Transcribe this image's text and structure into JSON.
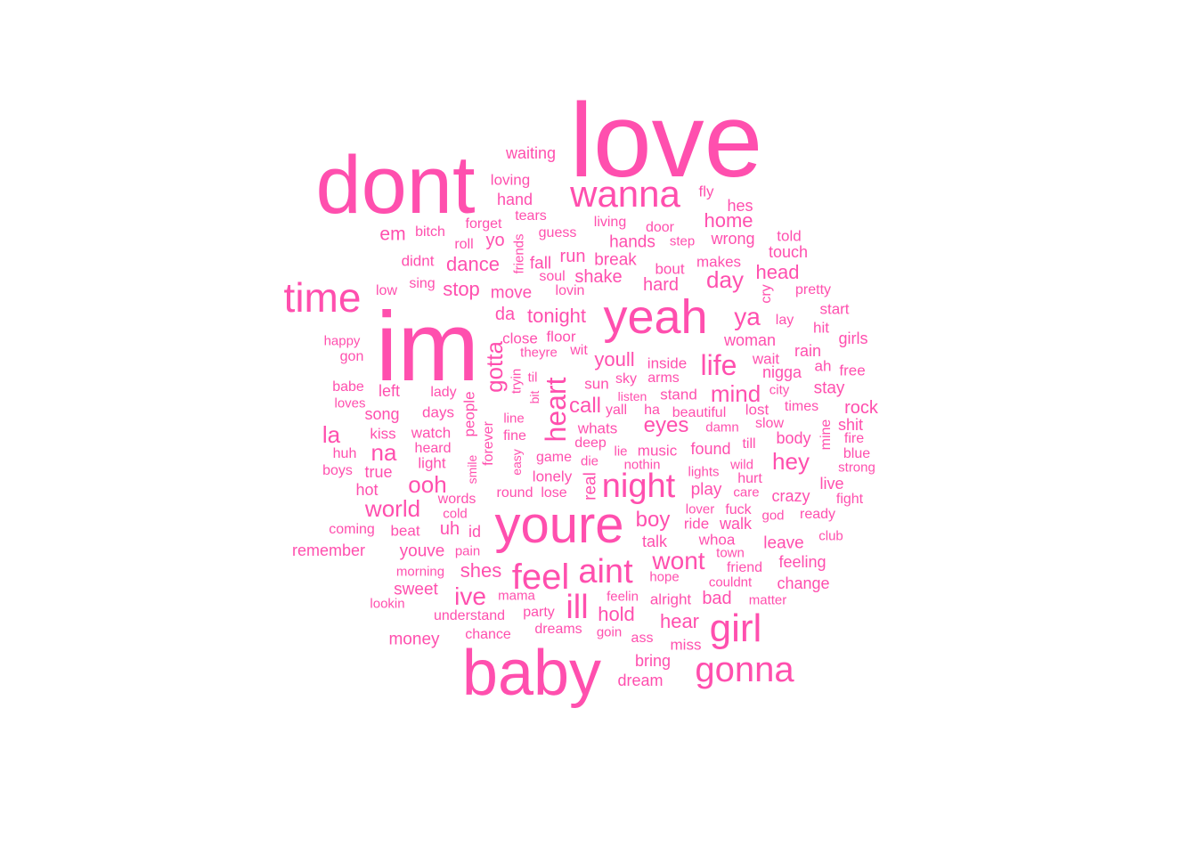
{
  "cloud": {
    "color": "#ff4fae",
    "words": [
      {
        "text": "love",
        "size": "huge",
        "prominence": 1.0
      },
      {
        "text": "dont",
        "size": "huge",
        "prominence": 0.85
      },
      {
        "text": "im",
        "size": "huge",
        "prominence": 0.95
      },
      {
        "text": "baby",
        "size": "huge",
        "prominence": 0.8
      },
      {
        "text": "youre",
        "size": "large",
        "prominence": 0.6
      },
      {
        "text": "yeah",
        "size": "large",
        "prominence": 0.6
      },
      {
        "text": "wanna",
        "size": "large",
        "prominence": 0.45
      },
      {
        "text": "time",
        "size": "large",
        "prominence": 0.45
      },
      {
        "text": "night",
        "size": "large",
        "prominence": 0.4
      },
      {
        "text": "girl",
        "size": "large",
        "prominence": 0.4
      },
      {
        "text": "gonna",
        "size": "large",
        "prominence": 0.4
      },
      {
        "text": "feel",
        "size": "large",
        "prominence": 0.38
      },
      {
        "text": "aint",
        "size": "large",
        "prominence": 0.38
      },
      {
        "text": "ill",
        "size": "large",
        "prominence": 0.35
      },
      {
        "text": "heart",
        "size": "medium",
        "prominence": 0.3
      },
      {
        "text": "life",
        "size": "medium",
        "prominence": 0.3
      },
      {
        "text": "wont",
        "size": "medium",
        "prominence": 0.27
      },
      {
        "text": "gotta",
        "size": "medium",
        "prominence": 0.27
      },
      {
        "text": "ooh",
        "size": "medium",
        "prominence": 0.26
      },
      {
        "text": "world",
        "size": "medium",
        "prominence": 0.24
      },
      {
        "text": "ive",
        "size": "medium",
        "prominence": 0.26
      },
      {
        "text": "day",
        "size": "medium",
        "prominence": 0.25
      },
      {
        "text": "ya",
        "size": "medium",
        "prominence": 0.24
      },
      {
        "text": "hey",
        "size": "medium",
        "prominence": 0.24
      },
      {
        "text": "mind",
        "size": "medium",
        "prominence": 0.22
      },
      {
        "text": "la",
        "size": "medium",
        "prominence": 0.24
      },
      {
        "text": "na",
        "size": "medium",
        "prominence": 0.22
      },
      {
        "text": "home",
        "size": "medium",
        "prominence": 0.2
      },
      {
        "text": "eyes",
        "size": "medium",
        "prominence": 0.2
      },
      {
        "text": "boy",
        "size": "medium",
        "prominence": 0.2
      },
      {
        "text": "youll",
        "size": "medium",
        "prominence": 0.2
      },
      {
        "text": "call",
        "size": "medium",
        "prominence": 0.2
      },
      {
        "text": "hold",
        "size": "medium",
        "prominence": 0.2
      },
      {
        "text": "hear",
        "size": "medium",
        "prominence": 0.2
      },
      {
        "text": "shes",
        "size": "medium",
        "prominence": 0.2
      },
      {
        "text": "tonight",
        "size": "medium",
        "prominence": 0.2
      },
      {
        "text": "dance",
        "size": "medium",
        "prominence": 0.18
      },
      {
        "text": "stop",
        "size": "medium",
        "prominence": 0.18
      },
      {
        "text": "hard",
        "size": "medium",
        "prominence": 0.17
      },
      {
        "text": "head",
        "size": "medium",
        "prominence": 0.17
      },
      {
        "text": "shake",
        "size": "medium",
        "prominence": 0.17
      },
      {
        "text": "break",
        "size": "small",
        "prominence": 0.16
      },
      {
        "text": "hands",
        "size": "small",
        "prominence": 0.16
      },
      {
        "text": "wrong",
        "size": "small",
        "prominence": 0.15
      },
      {
        "text": "run",
        "size": "small",
        "prominence": 0.16
      },
      {
        "text": "fall",
        "size": "small",
        "prominence": 0.15
      },
      {
        "text": "move",
        "size": "small",
        "prominence": 0.16
      },
      {
        "text": "da",
        "size": "small",
        "prominence": 0.16
      },
      {
        "text": "em",
        "size": "small",
        "prominence": 0.16
      },
      {
        "text": "hand",
        "size": "small",
        "prominence": 0.15
      },
      {
        "text": "fly",
        "size": "small",
        "prominence": 0.14
      },
      {
        "text": "hes",
        "size": "small",
        "prominence": 0.14
      },
      {
        "text": "told",
        "size": "small",
        "prominence": 0.13
      },
      {
        "text": "touch",
        "size": "small",
        "prominence": 0.14
      },
      {
        "text": "makes",
        "size": "small",
        "prominence": 0.13
      },
      {
        "text": "bout",
        "size": "small",
        "prominence": 0.13
      },
      {
        "text": "door",
        "size": "small",
        "prominence": 0.13
      },
      {
        "text": "step",
        "size": "small",
        "prominence": 0.12
      },
      {
        "text": "living",
        "size": "small",
        "prominence": 0.12
      },
      {
        "text": "guess",
        "size": "small",
        "prominence": 0.12
      },
      {
        "text": "tears",
        "size": "small",
        "prominence": 0.12
      },
      {
        "text": "forget",
        "size": "small",
        "prominence": 0.12
      },
      {
        "text": "loving",
        "size": "small",
        "prominence": 0.12
      },
      {
        "text": "waiting",
        "size": "small",
        "prominence": 0.13
      },
      {
        "text": "bitch",
        "size": "small",
        "prominence": 0.12
      },
      {
        "text": "roll",
        "size": "small",
        "prominence": 0.12
      },
      {
        "text": "yo",
        "size": "small",
        "prominence": 0.13
      },
      {
        "text": "friends",
        "size": "small",
        "prominence": 0.12
      },
      {
        "text": "didnt",
        "size": "small",
        "prominence": 0.12
      },
      {
        "text": "soul",
        "size": "small",
        "prominence": 0.12
      },
      {
        "text": "lovin",
        "size": "small",
        "prominence": 0.12
      },
      {
        "text": "sing",
        "size": "small",
        "prominence": 0.11
      },
      {
        "text": "low",
        "size": "small",
        "prominence": 0.11
      },
      {
        "text": "cry",
        "size": "small",
        "prominence": 0.12
      },
      {
        "text": "pretty",
        "size": "small",
        "prominence": 0.11
      },
      {
        "text": "start",
        "size": "small",
        "prominence": 0.12
      },
      {
        "text": "lay",
        "size": "small",
        "prominence": 0.11
      },
      {
        "text": "hit",
        "size": "small",
        "prominence": 0.12
      },
      {
        "text": "girls",
        "size": "small",
        "prominence": 0.13
      },
      {
        "text": "woman",
        "size": "small",
        "prominence": 0.13
      },
      {
        "text": "rain",
        "size": "small",
        "prominence": 0.13
      },
      {
        "text": "wait",
        "size": "small",
        "prominence": 0.13
      },
      {
        "text": "ah",
        "size": "small",
        "prominence": 0.12
      },
      {
        "text": "free",
        "size": "small",
        "prominence": 0.12
      },
      {
        "text": "nigga",
        "size": "small",
        "prominence": 0.13
      },
      {
        "text": "stay",
        "size": "small",
        "prominence": 0.14
      },
      {
        "text": "city",
        "size": "small",
        "prominence": 0.11
      },
      {
        "text": "close",
        "size": "small",
        "prominence": 0.13
      },
      {
        "text": "floor",
        "size": "small",
        "prominence": 0.13
      },
      {
        "text": "theyre",
        "size": "small",
        "prominence": 0.12
      },
      {
        "text": "wit",
        "size": "small",
        "prominence": 0.12
      },
      {
        "text": "inside",
        "size": "small",
        "prominence": 0.13
      },
      {
        "text": "happy",
        "size": "small",
        "prominence": 0.11
      },
      {
        "text": "gon",
        "size": "small",
        "prominence": 0.12
      },
      {
        "text": "babe",
        "size": "small",
        "prominence": 0.12
      },
      {
        "text": "left",
        "size": "small",
        "prominence": 0.13
      },
      {
        "text": "loves",
        "size": "small",
        "prominence": 0.11
      },
      {
        "text": "lady",
        "size": "small",
        "prominence": 0.12
      },
      {
        "text": "song",
        "size": "small",
        "prominence": 0.13
      },
      {
        "text": "days",
        "size": "small",
        "prominence": 0.12
      },
      {
        "text": "people",
        "size": "small",
        "prominence": 0.13
      },
      {
        "text": "tryin",
        "size": "small",
        "prominence": 0.12
      },
      {
        "text": "til",
        "size": "small",
        "prominence": 0.12
      },
      {
        "text": "bit",
        "size": "small",
        "prominence": 0.11
      },
      {
        "text": "sun",
        "size": "small",
        "prominence": 0.13
      },
      {
        "text": "sky",
        "size": "small",
        "prominence": 0.12
      },
      {
        "text": "arms",
        "size": "small",
        "prominence": 0.12
      },
      {
        "text": "listen",
        "size": "small",
        "prominence": 0.11
      },
      {
        "text": "stand",
        "size": "small",
        "prominence": 0.13
      },
      {
        "text": "yall",
        "size": "small",
        "prominence": 0.12
      },
      {
        "text": "ha",
        "size": "small",
        "prominence": 0.12
      },
      {
        "text": "beautiful",
        "size": "small",
        "prominence": 0.12
      },
      {
        "text": "lost",
        "size": "small",
        "prominence": 0.13
      },
      {
        "text": "times",
        "size": "small",
        "prominence": 0.12
      },
      {
        "text": "rock",
        "size": "small",
        "prominence": 0.14
      },
      {
        "text": "slow",
        "size": "small",
        "prominence": 0.12
      },
      {
        "text": "mine",
        "size": "small",
        "prominence": 0.12
      },
      {
        "text": "shit",
        "size": "small",
        "prominence": 0.13
      },
      {
        "text": "kiss",
        "size": "small",
        "prominence": 0.13
      },
      {
        "text": "watch",
        "size": "small",
        "prominence": 0.13
      },
      {
        "text": "line",
        "size": "small",
        "prominence": 0.11
      },
      {
        "text": "whats",
        "size": "small",
        "prominence": 0.13
      },
      {
        "text": "damn",
        "size": "small",
        "prominence": 0.12
      },
      {
        "text": "body",
        "size": "small",
        "prominence": 0.14
      },
      {
        "text": "fire",
        "size": "small",
        "prominence": 0.12
      },
      {
        "text": "huh",
        "size": "small",
        "prominence": 0.11
      },
      {
        "text": "heard",
        "size": "small",
        "prominence": 0.12
      },
      {
        "text": "forever",
        "size": "small",
        "prominence": 0.12
      },
      {
        "text": "fine",
        "size": "small",
        "prominence": 0.12
      },
      {
        "text": "deep",
        "size": "small",
        "prominence": 0.12
      },
      {
        "text": "till",
        "size": "small",
        "prominence": 0.12
      },
      {
        "text": "blue",
        "size": "small",
        "prominence": 0.12
      },
      {
        "text": "light",
        "size": "small",
        "prominence": 0.13
      },
      {
        "text": "lie",
        "size": "small",
        "prominence": 0.11
      },
      {
        "text": "music",
        "size": "small",
        "prominence": 0.13
      },
      {
        "text": "found",
        "size": "small",
        "prominence": 0.13
      },
      {
        "text": "strong",
        "size": "small",
        "prominence": 0.11
      },
      {
        "text": "boys",
        "size": "small",
        "prominence": 0.11
      },
      {
        "text": "true",
        "size": "small",
        "prominence": 0.13
      },
      {
        "text": "smile",
        "size": "small",
        "prominence": 0.11
      },
      {
        "text": "easy",
        "size": "small",
        "prominence": 0.11
      },
      {
        "text": "game",
        "size": "small",
        "prominence": 0.12
      },
      {
        "text": "die",
        "size": "small",
        "prominence": 0.12
      },
      {
        "text": "nothin",
        "size": "small",
        "prominence": 0.12
      },
      {
        "text": "lights",
        "size": "small",
        "prominence": 0.12
      },
      {
        "text": "wild",
        "size": "small",
        "prominence": 0.12
      },
      {
        "text": "hurt",
        "size": "small",
        "prominence": 0.12
      },
      {
        "text": "lonely",
        "size": "small",
        "prominence": 0.13
      },
      {
        "text": "real",
        "size": "small",
        "prominence": 0.13
      },
      {
        "text": "play",
        "size": "small",
        "prominence": 0.14
      },
      {
        "text": "care",
        "size": "small",
        "prominence": 0.12
      },
      {
        "text": "crazy",
        "size": "small",
        "prominence": 0.13
      },
      {
        "text": "live",
        "size": "small",
        "prominence": 0.13
      },
      {
        "text": "hot",
        "size": "small",
        "prominence": 0.13
      },
      {
        "text": "words",
        "size": "small",
        "prominence": 0.12
      },
      {
        "text": "round",
        "size": "small",
        "prominence": 0.12
      },
      {
        "text": "lose",
        "size": "small",
        "prominence": 0.12
      },
      {
        "text": "fight",
        "size": "small",
        "prominence": 0.12
      },
      {
        "text": "cold",
        "size": "small",
        "prominence": 0.12
      },
      {
        "text": "lover",
        "size": "small",
        "prominence": 0.12
      },
      {
        "text": "fuck",
        "size": "small",
        "prominence": 0.12
      },
      {
        "text": "god",
        "size": "small",
        "prominence": 0.12
      },
      {
        "text": "ready",
        "size": "small",
        "prominence": 0.12
      },
      {
        "text": "coming",
        "size": "small",
        "prominence": 0.12
      },
      {
        "text": "beat",
        "size": "small",
        "prominence": 0.12
      },
      {
        "text": "uh",
        "size": "small",
        "prominence": 0.14
      },
      {
        "text": "id",
        "size": "small",
        "prominence": 0.13
      },
      {
        "text": "ride",
        "size": "small",
        "prominence": 0.13
      },
      {
        "text": "walk",
        "size": "small",
        "prominence": 0.13
      },
      {
        "text": "club",
        "size": "small",
        "prominence": 0.12
      },
      {
        "text": "talk",
        "size": "small",
        "prominence": 0.13
      },
      {
        "text": "whoa",
        "size": "small",
        "prominence": 0.12
      },
      {
        "text": "leave",
        "size": "small",
        "prominence": 0.14
      },
      {
        "text": "remember",
        "size": "small",
        "prominence": 0.13
      },
      {
        "text": "youve",
        "size": "small",
        "prominence": 0.13
      },
      {
        "text": "pain",
        "size": "small",
        "prominence": 0.11
      },
      {
        "text": "town",
        "size": "small",
        "prominence": 0.12
      },
      {
        "text": "feeling",
        "size": "small",
        "prominence": 0.13
      },
      {
        "text": "friend",
        "size": "small",
        "prominence": 0.12
      },
      {
        "text": "morning",
        "size": "small",
        "prominence": 0.11
      },
      {
        "text": "hope",
        "size": "small",
        "prominence": 0.12
      },
      {
        "text": "couldnt",
        "size": "small",
        "prominence": 0.12
      },
      {
        "text": "change",
        "size": "small",
        "prominence": 0.13
      },
      {
        "text": "sweet",
        "size": "small",
        "prominence": 0.13
      },
      {
        "text": "mama",
        "size": "small",
        "prominence": 0.12
      },
      {
        "text": "feelin",
        "size": "small",
        "prominence": 0.11
      },
      {
        "text": "alright",
        "size": "small",
        "prominence": 0.12
      },
      {
        "text": "bad",
        "size": "small",
        "prominence": 0.14
      },
      {
        "text": "matter",
        "size": "small",
        "prominence": 0.12
      },
      {
        "text": "lookin",
        "size": "small",
        "prominence": 0.11
      },
      {
        "text": "party",
        "size": "small",
        "prominence": 0.12
      },
      {
        "text": "understand",
        "size": "small",
        "prominence": 0.12
      },
      {
        "text": "money",
        "size": "small",
        "prominence": 0.13
      },
      {
        "text": "chance",
        "size": "small",
        "prominence": 0.12
      },
      {
        "text": "dreams",
        "size": "small",
        "prominence": 0.12
      },
      {
        "text": "goin",
        "size": "small",
        "prominence": 0.12
      },
      {
        "text": "ass",
        "size": "small",
        "prominence": 0.12
      },
      {
        "text": "miss",
        "size": "small",
        "prominence": 0.12
      },
      {
        "text": "bring",
        "size": "small",
        "prominence": 0.13
      },
      {
        "text": "dream",
        "size": "small",
        "prominence": 0.12
      }
    ]
  }
}
